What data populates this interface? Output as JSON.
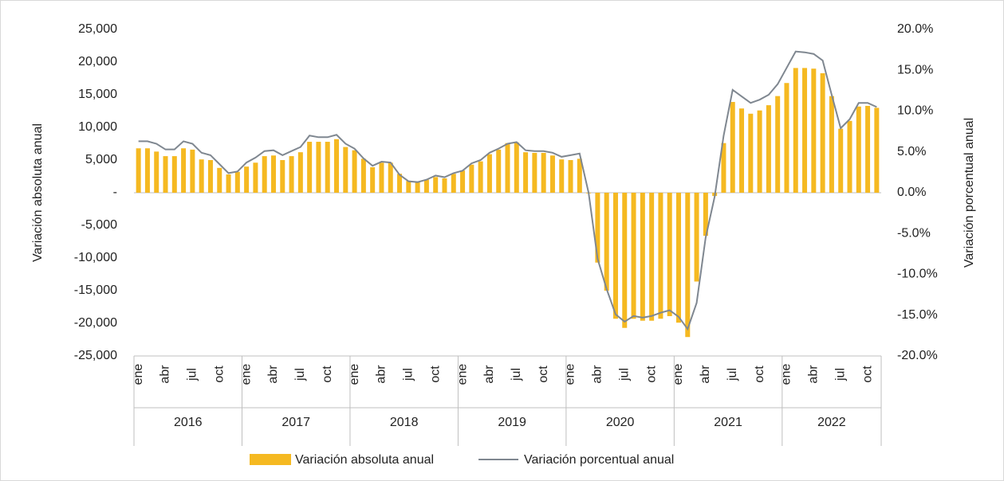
{
  "chart_data": {
    "type": "bar_line",
    "y_label": "Variación absoluta anual",
    "y2_label": "Variación porcentual anual",
    "categories": [
      "ene",
      null,
      null,
      "abr",
      null,
      null,
      "jul",
      null,
      null,
      "oct",
      null,
      null,
      "ene",
      null,
      null,
      "abr",
      null,
      null,
      "jul",
      null,
      null,
      "oct",
      null,
      null,
      "ene",
      null,
      null,
      "abr",
      null,
      null,
      "jul",
      null,
      null,
      "oct",
      null,
      null,
      "ene",
      null,
      null,
      "abr",
      null,
      null,
      "jul",
      null,
      null,
      "oct",
      null,
      null,
      "ene",
      null,
      null,
      "abr",
      null,
      null,
      "jul",
      null,
      null,
      "oct",
      null,
      null,
      "ene",
      null,
      null,
      "abr",
      null,
      null,
      "jul",
      null,
      null,
      "oct",
      null,
      null,
      "ene",
      null,
      null,
      "abr",
      null,
      null,
      "jul",
      null,
      null,
      "oct",
      null
    ],
    "x_groups": [
      {
        "label": "2016",
        "size": 12
      },
      {
        "label": "2017",
        "size": 12
      },
      {
        "label": "2018",
        "size": 12
      },
      {
        "label": "2019",
        "size": 12
      },
      {
        "label": "2020",
        "size": 12
      },
      {
        "label": "2021",
        "size": 12
      },
      {
        "label": "2022",
        "size": 11
      }
    ],
    "series": [
      {
        "name": "Variación absoluta anual",
        "type": "bar",
        "color": "#F5B921",
        "values": [
          6800,
          6800,
          6300,
          5600,
          5600,
          6800,
          6600,
          5100,
          5000,
          3800,
          2800,
          3200,
          4000,
          4600,
          5600,
          5700,
          5000,
          5600,
          6200,
          7800,
          7800,
          7800,
          8200,
          7000,
          6500,
          5200,
          3900,
          4600,
          4600,
          2900,
          1800,
          1600,
          2000,
          2400,
          2200,
          2900,
          3400,
          4300,
          4800,
          5900,
          6600,
          7600,
          7700,
          6200,
          6100,
          6100,
          5700,
          5100,
          5000,
          5200,
          -100,
          -10700,
          -15000,
          -19300,
          -20700,
          -19300,
          -19600,
          -19600,
          -19300,
          -18900,
          -19900,
          -22100,
          -13600,
          -6600,
          -500,
          7600,
          13900,
          12900,
          12100,
          12600,
          13400,
          14800,
          16800,
          19100,
          19100,
          19000,
          18300,
          14800,
          9800,
          11000,
          13200,
          13300,
          13000
        ]
      },
      {
        "name": "Variación porcentual anual",
        "type": "line",
        "axis": "y2",
        "color": "#7F8790",
        "values": [
          6.3,
          6.3,
          6.0,
          5.3,
          5.3,
          6.3,
          6.0,
          4.9,
          4.6,
          3.5,
          2.4,
          2.6,
          3.7,
          4.3,
          5.1,
          5.2,
          4.6,
          5.1,
          5.6,
          7.0,
          6.8,
          6.8,
          7.1,
          6.0,
          5.4,
          4.2,
          3.3,
          3.8,
          3.7,
          2.2,
          1.4,
          1.3,
          1.6,
          2.1,
          1.9,
          2.4,
          2.7,
          3.6,
          4.0,
          4.9,
          5.4,
          6.0,
          6.2,
          5.2,
          5.1,
          5.1,
          4.9,
          4.4,
          4.6,
          4.8,
          0.0,
          -8.1,
          -11.8,
          -14.9,
          -15.8,
          -15.1,
          -15.3,
          -15.1,
          -14.7,
          -14.4,
          -15.2,
          -16.7,
          -13.5,
          -5.5,
          -0.5,
          7.0,
          12.6,
          11.8,
          11.0,
          11.4,
          12.0,
          13.3,
          15.3,
          17.3,
          17.2,
          17.0,
          16.2,
          12.0,
          7.9,
          9.0,
          11.0,
          11.0,
          10.5
        ]
      }
    ],
    "ylim": [
      -25000,
      25000
    ],
    "yticks": [
      {
        "value": 25000,
        "label": "25,000"
      },
      {
        "value": 20000,
        "label": "20,000"
      },
      {
        "value": 15000,
        "label": "15,000"
      },
      {
        "value": 10000,
        "label": "10,000"
      },
      {
        "value": 5000,
        "label": "5,000"
      },
      {
        "value": 0,
        "label": "-"
      },
      {
        "value": -5000,
        "label": "-5,000"
      },
      {
        "value": -10000,
        "label": "-10,000"
      },
      {
        "value": -15000,
        "label": "-15,000"
      },
      {
        "value": -20000,
        "label": "-20,000"
      },
      {
        "value": -25000,
        "label": "-25,000"
      }
    ],
    "y2lim": [
      -20,
      20
    ],
    "y2ticks": [
      {
        "value": 20,
        "label": "20.0%"
      },
      {
        "value": 15,
        "label": "15.0%"
      },
      {
        "value": 10,
        "label": "10.0%"
      },
      {
        "value": 5,
        "label": "5.0%"
      },
      {
        "value": 0,
        "label": "0.0%"
      },
      {
        "value": -5,
        "label": "-5.0%"
      },
      {
        "value": -10,
        "label": "-10.0%"
      },
      {
        "value": -15,
        "label": "-15.0%"
      },
      {
        "value": -20,
        "label": "-20.0%"
      }
    ],
    "legend": "bottom"
  }
}
